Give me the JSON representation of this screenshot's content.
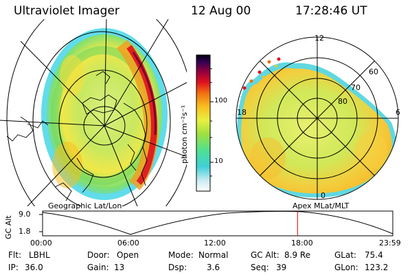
{
  "header": {
    "title": "Ultraviolet Imager",
    "date": "12 Aug 00",
    "time": "17:28:46 UT"
  },
  "geo_panel": {
    "label": "Geographic Lat/Lon"
  },
  "apex_panel": {
    "label": "Apex MLat/MLT",
    "mlt_labels": [
      "12",
      "18",
      "6",
      "0"
    ],
    "lat_labels": [
      "60",
      "70",
      "80"
    ]
  },
  "colorbar": {
    "unit_label": "photon cm⁻²s⁻¹",
    "tick_labels": [
      "100",
      "10"
    ]
  },
  "altitude_strip": {
    "ylabel": "GC Alt",
    "y_ticks": [
      "9.0",
      "1.8"
    ],
    "time_ticks": [
      "00:00",
      "06:00",
      "12:00",
      "18:00",
      "23:59"
    ],
    "current_time_fraction": 0.728
  },
  "info": {
    "flt_label": "Flt:",
    "flt_value": "LBHL",
    "ip_label": "IP:",
    "ip_value": "36.0",
    "door_label": "Door:",
    "door_value": "Open",
    "gain_label": "Gain:",
    "gain_value": "13",
    "mode_label": "Mode:",
    "mode_value": "Normal",
    "dsp_label": "Dsp:",
    "dsp_value": "3.6",
    "gcalt_label": "GC Alt:",
    "gcalt_value": "8.9 Re",
    "seq_label": "Seq:",
    "seq_value": "39",
    "glat_label": "GLat:",
    "glat_value": "75.4",
    "glon_label": "GLon:",
    "glon_value": "123.2"
  }
}
